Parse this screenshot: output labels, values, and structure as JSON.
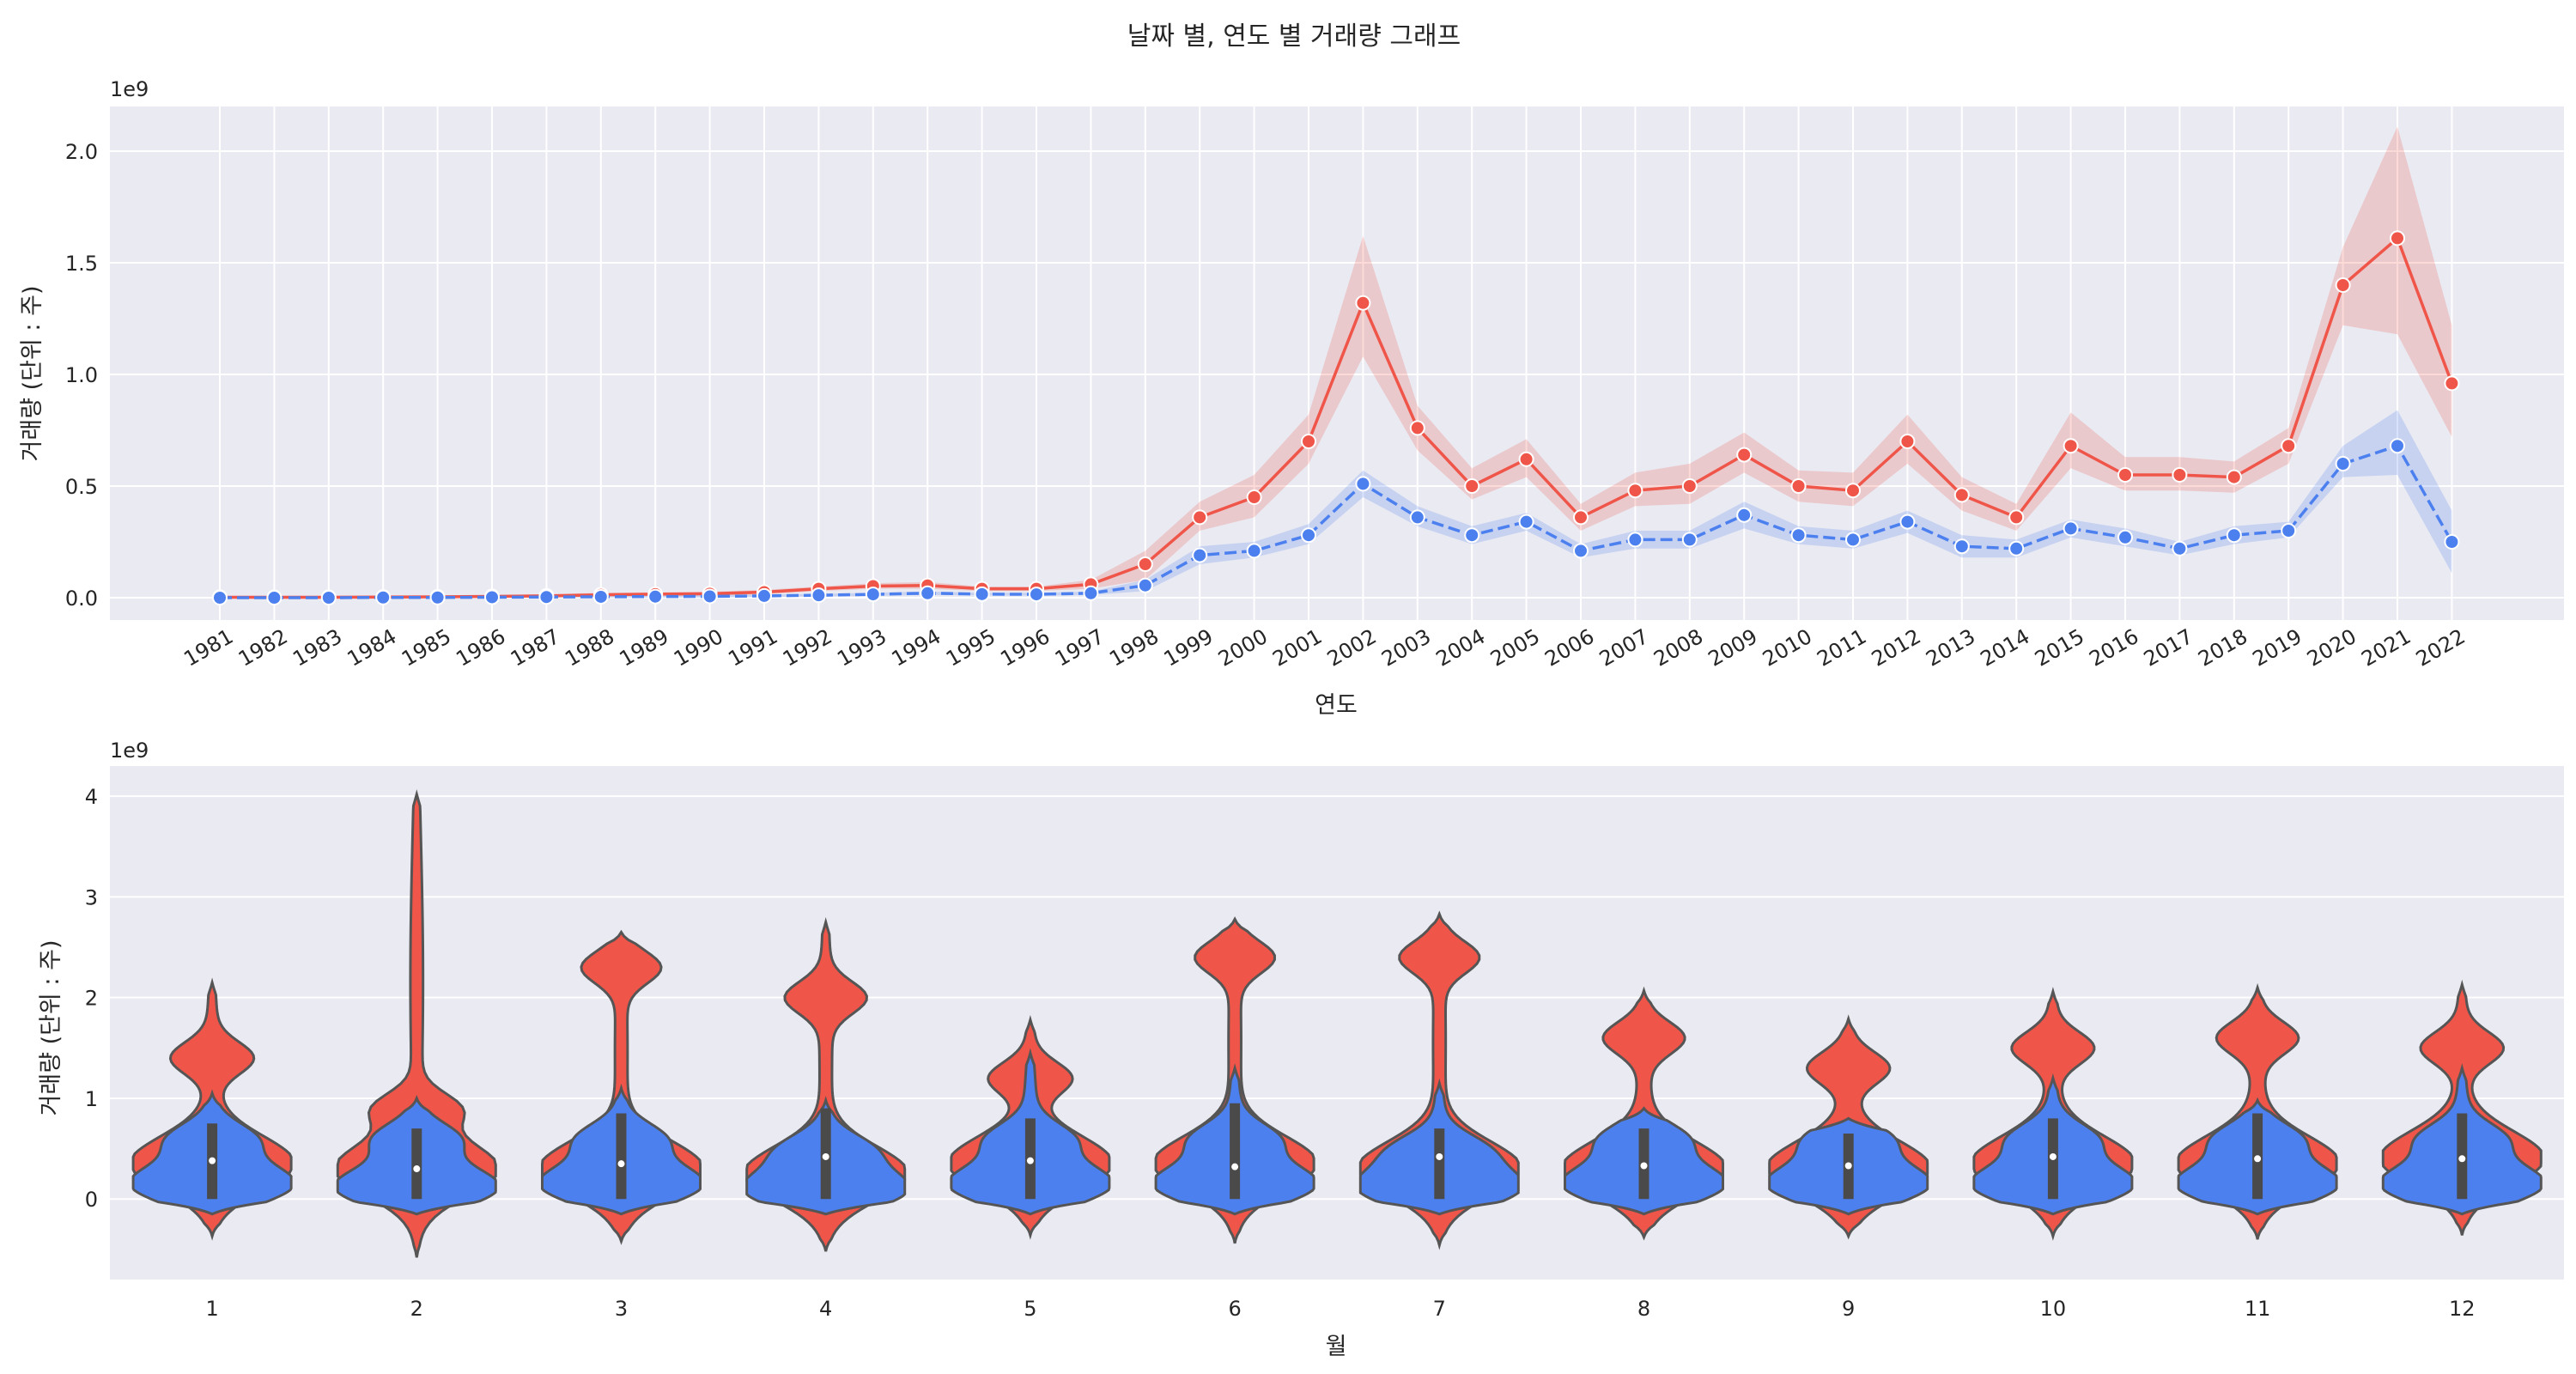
{
  "figure": {
    "title": "날짜 별, 연도 별 거래량 그래프"
  },
  "colors": {
    "background": "#eaeaf2",
    "grid": "#ffffff",
    "series_red": "#ef5548",
    "series_blue": "#4d80ef",
    "violin_edge": "#555555"
  },
  "chart_data": [
    {
      "type": "line",
      "xlabel": "연도",
      "ylabel": "거래량 (단위 : 주)",
      "offset_text": "1e9",
      "ylim": [
        -0.1,
        2.2
      ],
      "yticks": [
        0.0,
        0.5,
        1.0,
        1.5,
        2.0
      ],
      "ytick_labels": [
        "0.0",
        "0.5",
        "1.0",
        "1.5",
        "2.0"
      ],
      "grid": true,
      "x": [
        1981,
        1982,
        1983,
        1984,
        1985,
        1986,
        1987,
        1988,
        1989,
        1990,
        1991,
        1992,
        1993,
        1994,
        1995,
        1996,
        1997,
        1998,
        1999,
        2000,
        2001,
        2002,
        2003,
        2004,
        2005,
        2006,
        2007,
        2008,
        2009,
        2010,
        2011,
        2012,
        2013,
        2014,
        2015,
        2016,
        2017,
        2018,
        2019,
        2020,
        2021,
        2022
      ],
      "series": [
        {
          "color": "red",
          "linestyle": "solid",
          "values": [
            0.002,
            0.002,
            0.002,
            0.003,
            0.004,
            0.006,
            0.008,
            0.013,
            0.016,
            0.018,
            0.025,
            0.04,
            0.052,
            0.055,
            0.04,
            0.04,
            0.06,
            0.15,
            0.36,
            0.45,
            0.7,
            1.32,
            0.76,
            0.5,
            0.62,
            0.36,
            0.48,
            0.5,
            0.64,
            0.5,
            0.48,
            0.7,
            0.46,
            0.36,
            0.68,
            0.55,
            0.55,
            0.54,
            0.68,
            1.4,
            1.61,
            0.96
          ],
          "band_low": [
            0.0,
            0.0,
            0.0,
            0.0,
            0.0,
            0.0,
            0.0,
            0.005,
            0.01,
            0.01,
            0.015,
            0.03,
            0.04,
            0.04,
            0.03,
            0.03,
            0.04,
            0.08,
            0.3,
            0.36,
            0.6,
            1.08,
            0.66,
            0.44,
            0.54,
            0.3,
            0.41,
            0.42,
            0.56,
            0.43,
            0.41,
            0.6,
            0.39,
            0.3,
            0.58,
            0.48,
            0.48,
            0.47,
            0.6,
            1.22,
            1.18,
            0.72
          ],
          "band_high": [
            0.005,
            0.005,
            0.005,
            0.006,
            0.008,
            0.012,
            0.015,
            0.022,
            0.024,
            0.027,
            0.035,
            0.05,
            0.065,
            0.07,
            0.05,
            0.05,
            0.08,
            0.21,
            0.43,
            0.55,
            0.82,
            1.62,
            0.86,
            0.58,
            0.71,
            0.42,
            0.56,
            0.6,
            0.74,
            0.57,
            0.56,
            0.82,
            0.54,
            0.42,
            0.83,
            0.63,
            0.63,
            0.61,
            0.76,
            1.57,
            2.11,
            1.22
          ]
        },
        {
          "color": "blue",
          "linestyle": "dashed",
          "values": [
            0.0,
            0.0,
            0.0,
            0.001,
            0.001,
            0.002,
            0.003,
            0.004,
            0.005,
            0.006,
            0.008,
            0.011,
            0.015,
            0.02,
            0.016,
            0.015,
            0.02,
            0.055,
            0.19,
            0.21,
            0.28,
            0.51,
            0.36,
            0.28,
            0.34,
            0.21,
            0.26,
            0.26,
            0.37,
            0.28,
            0.26,
            0.34,
            0.23,
            0.22,
            0.31,
            0.27,
            0.22,
            0.28,
            0.3,
            0.6,
            0.68,
            0.25
          ],
          "band_low": [
            0.0,
            0.0,
            0.0,
            0.0,
            0.0,
            0.0,
            0.0,
            0.0,
            0.0,
            0.0,
            0.003,
            0.006,
            0.008,
            0.012,
            0.01,
            0.009,
            0.012,
            0.03,
            0.15,
            0.18,
            0.24,
            0.45,
            0.32,
            0.24,
            0.3,
            0.18,
            0.22,
            0.22,
            0.31,
            0.24,
            0.22,
            0.29,
            0.18,
            0.18,
            0.27,
            0.23,
            0.19,
            0.24,
            0.27,
            0.54,
            0.55,
            0.11
          ],
          "band_high": [
            0.002,
            0.002,
            0.002,
            0.003,
            0.004,
            0.005,
            0.006,
            0.008,
            0.01,
            0.012,
            0.014,
            0.017,
            0.022,
            0.028,
            0.022,
            0.022,
            0.028,
            0.08,
            0.23,
            0.25,
            0.33,
            0.57,
            0.41,
            0.32,
            0.38,
            0.24,
            0.3,
            0.3,
            0.43,
            0.32,
            0.3,
            0.39,
            0.28,
            0.26,
            0.35,
            0.31,
            0.25,
            0.32,
            0.34,
            0.68,
            0.84,
            0.39
          ]
        }
      ]
    },
    {
      "type": "violin",
      "xlabel": "월",
      "ylabel": "거래량 (단위 : 주)",
      "offset_text": "1e9",
      "ylim": [
        -0.8,
        4.3
      ],
      "yticks": [
        0,
        1,
        2,
        3,
        4
      ],
      "ytick_labels": [
        "0",
        "1",
        "2",
        "3",
        "4"
      ],
      "grid": true,
      "categories": [
        "1",
        "2",
        "3",
        "4",
        "5",
        "6",
        "7",
        "8",
        "9",
        "10",
        "11",
        "12"
      ],
      "series": [
        {
          "color": "red",
          "min": [
            -0.37,
            -0.58,
            -0.42,
            -0.52,
            -0.36,
            -0.44,
            -0.46,
            -0.38,
            -0.37,
            -0.37,
            -0.4,
            -0.36
          ],
          "max": [
            2.15,
            4.02,
            2.65,
            2.75,
            1.78,
            2.78,
            2.83,
            2.07,
            1.79,
            2.06,
            2.1,
            2.13
          ],
          "peak": [
            0.35,
            0.3,
            0.3,
            0.25,
            0.35,
            0.35,
            0.3,
            0.3,
            0.3,
            0.35,
            0.35,
            0.4
          ],
          "bump": [
            1.4,
            0.9,
            2.3,
            2.0,
            1.2,
            2.4,
            2.4,
            1.6,
            1.3,
            1.5,
            1.6,
            1.5
          ]
        },
        {
          "color": "blue",
          "min": [
            -0.15,
            -0.15,
            -0.15,
            -0.15,
            -0.15,
            -0.15,
            -0.15,
            -0.15,
            -0.15,
            -0.15,
            -0.15,
            -0.15
          ],
          "max": [
            1.05,
            1.0,
            1.1,
            0.98,
            1.45,
            1.3,
            1.15,
            0.9,
            0.8,
            1.2,
            0.98,
            1.3
          ],
          "peak": [
            0.15,
            0.12,
            0.15,
            0.1,
            0.15,
            0.15,
            0.12,
            0.15,
            0.15,
            0.15,
            0.15,
            0.15
          ],
          "bump": [
            0.6,
            0.6,
            0.6,
            0.5,
            0.6,
            0.6,
            0.5,
            0.6,
            0.6,
            0.6,
            0.6,
            0.6
          ]
        }
      ],
      "median": [
        0.38,
        0.3,
        0.35,
        0.42,
        0.38,
        0.32,
        0.42,
        0.33,
        0.33,
        0.42,
        0.4,
        0.4
      ],
      "q1": [
        0.0,
        0.0,
        0.0,
        0.0,
        0.0,
        0.0,
        0.0,
        0.0,
        0.0,
        0.0,
        0.0,
        0.0
      ],
      "q3": [
        0.75,
        0.7,
        0.85,
        0.9,
        0.8,
        0.95,
        0.7,
        0.7,
        0.65,
        0.8,
        0.85,
        0.85
      ]
    }
  ]
}
